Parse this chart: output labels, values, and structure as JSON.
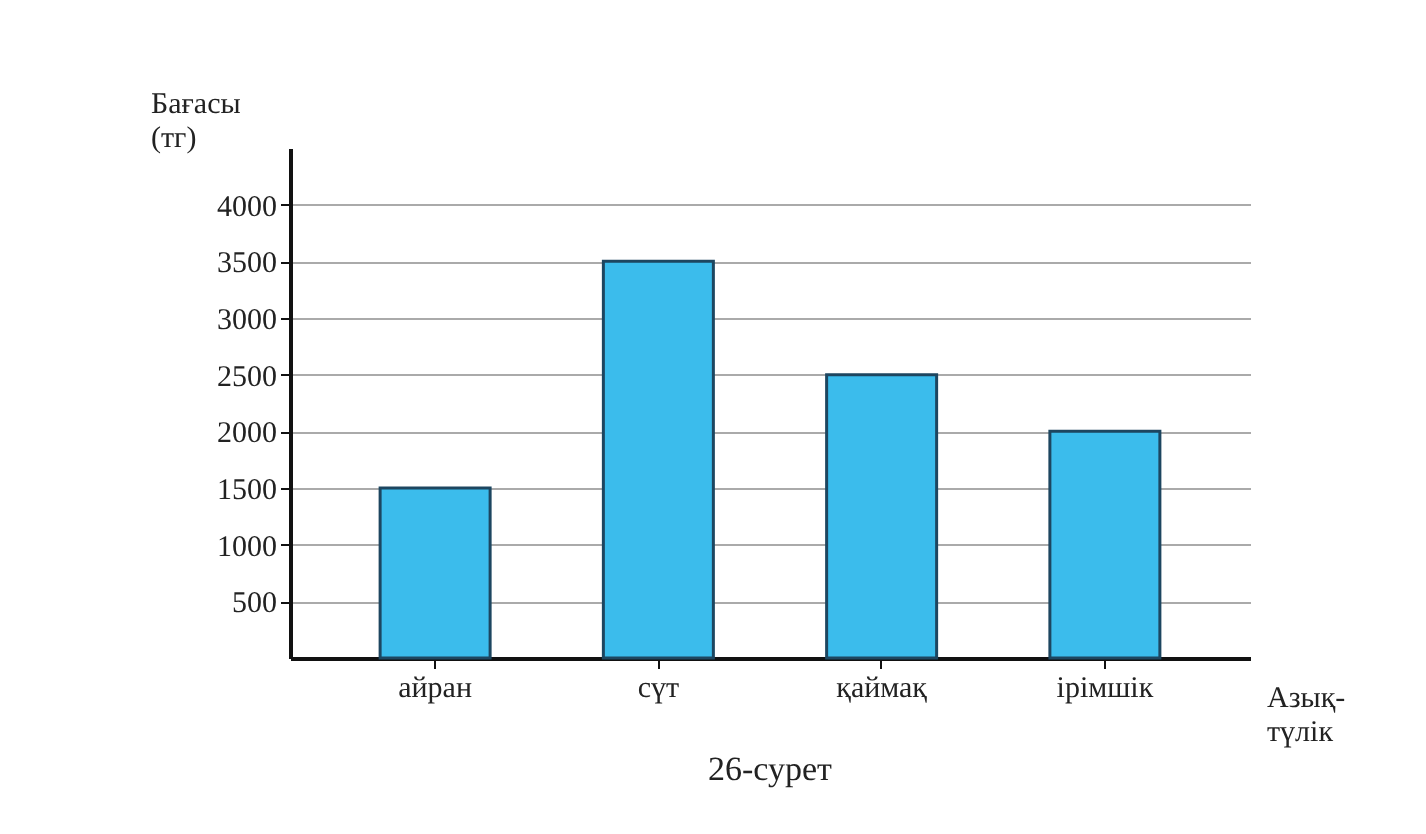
{
  "chart_data": {
    "type": "bar",
    "categories": [
      "айран",
      "сүт",
      "қаймақ",
      "ірімшік"
    ],
    "values": [
      1500,
      3500,
      2500,
      2000
    ],
    "color": "#3bbcec",
    "ylabel": "Бағасы (тг)",
    "xlabel": "Азық-түлік",
    "annotations": [
      "26-сурет"
    ],
    "ylim": [
      0,
      4500
    ],
    "yticks": [
      500,
      1000,
      1500,
      2000,
      2500,
      3000,
      3500,
      4000
    ],
    "grid": "y"
  }
}
